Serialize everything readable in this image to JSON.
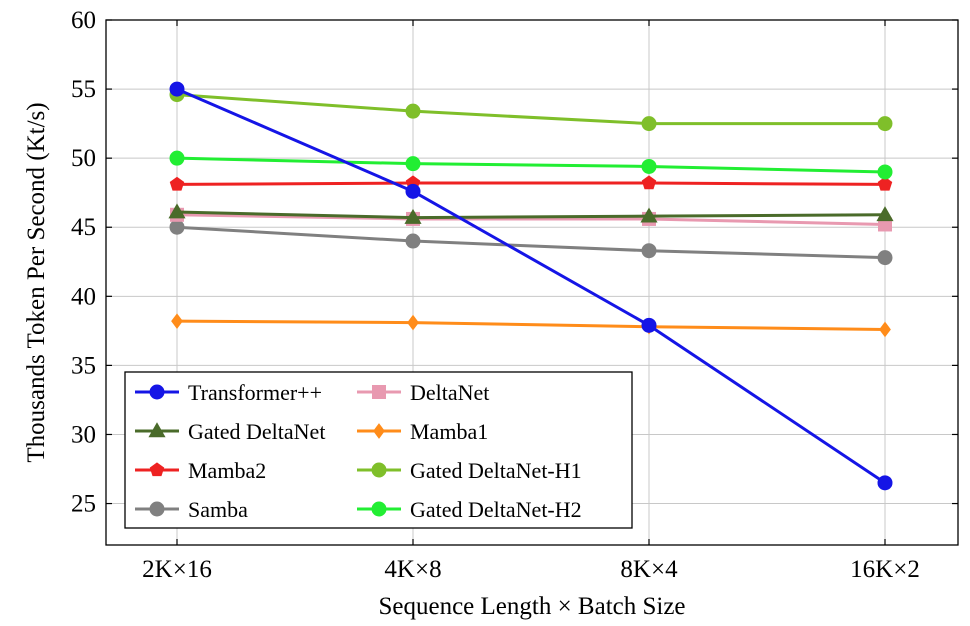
{
  "chart_data": {
    "type": "line",
    "xlabel": "Sequence Length × Batch Size",
    "ylabel": "Thousands Token Per Second (Kt/s)",
    "categories": [
      "2K×16",
      "4K×8",
      "8K×4",
      "16K×2"
    ],
    "ylim": [
      22,
      60
    ],
    "yticks": [
      25,
      30,
      35,
      40,
      45,
      50,
      55,
      60
    ],
    "grid": true,
    "legend_position": "bottom-left",
    "series": [
      {
        "name": "Transformer++",
        "color": "#1515e6",
        "marker": "circle",
        "values": [
          55.0,
          47.6,
          37.9,
          26.5
        ]
      },
      {
        "name": "DeltaNet",
        "color": "#e899b0",
        "marker": "square",
        "values": [
          45.9,
          45.6,
          45.6,
          45.2
        ]
      },
      {
        "name": "Gated DeltaNet",
        "color": "#4a6b2a",
        "marker": "triangle",
        "values": [
          46.1,
          45.7,
          45.8,
          45.9
        ]
      },
      {
        "name": "Mamba1",
        "color": "#ff8c1a",
        "marker": "diamond",
        "values": [
          38.2,
          38.1,
          37.8,
          37.6
        ]
      },
      {
        "name": "Mamba2",
        "color": "#ee2222",
        "marker": "pentagon",
        "values": [
          48.1,
          48.2,
          48.2,
          48.1
        ]
      },
      {
        "name": "Gated DeltaNet-H1",
        "color": "#7fbf2a",
        "marker": "circle",
        "values": [
          54.6,
          53.4,
          52.5,
          52.5
        ]
      },
      {
        "name": "Samba",
        "color": "#808080",
        "marker": "circle",
        "values": [
          45.0,
          44.0,
          43.3,
          42.8
        ]
      },
      {
        "name": "Gated DeltaNet-H2",
        "color": "#22ee33",
        "marker": "circle",
        "values": [
          50.0,
          49.6,
          49.4,
          49.0
        ]
      }
    ]
  }
}
